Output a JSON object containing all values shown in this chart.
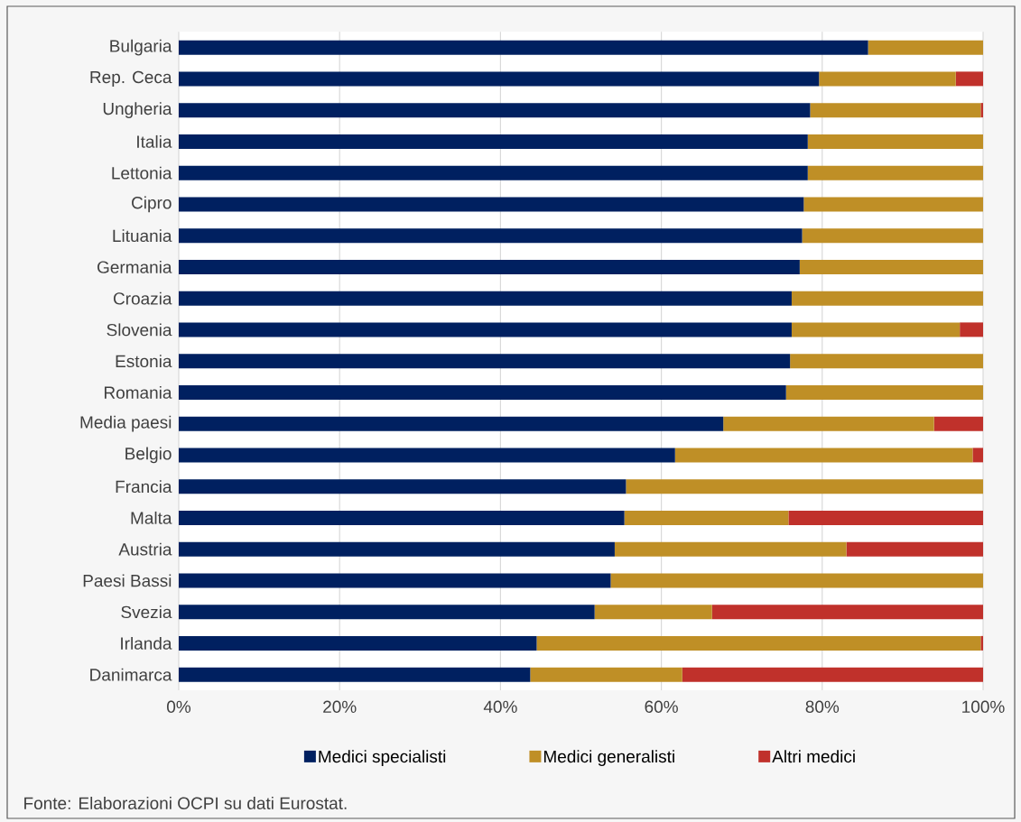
{
  "chart_data": {
    "type": "bar",
    "orientation": "horizontal",
    "stacked": true,
    "categories": [
      "Bulgaria",
      "Rep. Ceca",
      "Ungheria",
      "Italia",
      "Lettonia",
      "Cipro",
      "Lituania",
      "Germania",
      "Croazia",
      "Slovenia",
      "Estonia",
      "Romania",
      "Media paesi",
      "Belgio",
      "Francia",
      "Malta",
      "Austria",
      "Paesi Bassi",
      "Svezia",
      "Irlanda",
      "Danimarca"
    ],
    "series": [
      {
        "name": "Medici specialisti",
        "color": "#002060",
        "values": [
          85.7,
          79.6,
          78.5,
          78.2,
          78.2,
          77.7,
          77.5,
          77.2,
          76.2,
          76.2,
          76.0,
          75.5,
          67.7,
          61.7,
          55.6,
          55.4,
          54.2,
          53.7,
          51.7,
          44.5,
          43.7
        ]
      },
      {
        "name": "Medici generalisti",
        "color": "#bf8f26",
        "values": [
          14.3,
          17.0,
          21.2,
          21.8,
          21.8,
          22.3,
          22.5,
          22.8,
          23.8,
          20.9,
          24.0,
          24.5,
          26.2,
          37.0,
          44.4,
          20.4,
          28.8,
          46.3,
          14.6,
          55.2,
          18.9
        ]
      },
      {
        "name": "Altri medici",
        "color": "#c0312b",
        "values": [
          null,
          3.4,
          0.3,
          null,
          null,
          null,
          null,
          null,
          null,
          2.9,
          null,
          null,
          6.1,
          1.3,
          null,
          24.2,
          17.0,
          null,
          33.7,
          0.3,
          37.4
        ]
      }
    ],
    "xlim": [
      0,
      100
    ],
    "xticks": [
      {
        "value": 0,
        "label": "0%"
      },
      {
        "value": 20,
        "label": "20%"
      },
      {
        "value": 40,
        "label": "40%"
      },
      {
        "value": 60,
        "label": "60%"
      },
      {
        "value": 80,
        "label": "80%"
      },
      {
        "value": 100,
        "label": "100%"
      }
    ],
    "grid": "x",
    "legend": "bottom",
    "annotations": [
      "Fonte: Elaborazioni OCPI su dati Eurostat."
    ]
  }
}
